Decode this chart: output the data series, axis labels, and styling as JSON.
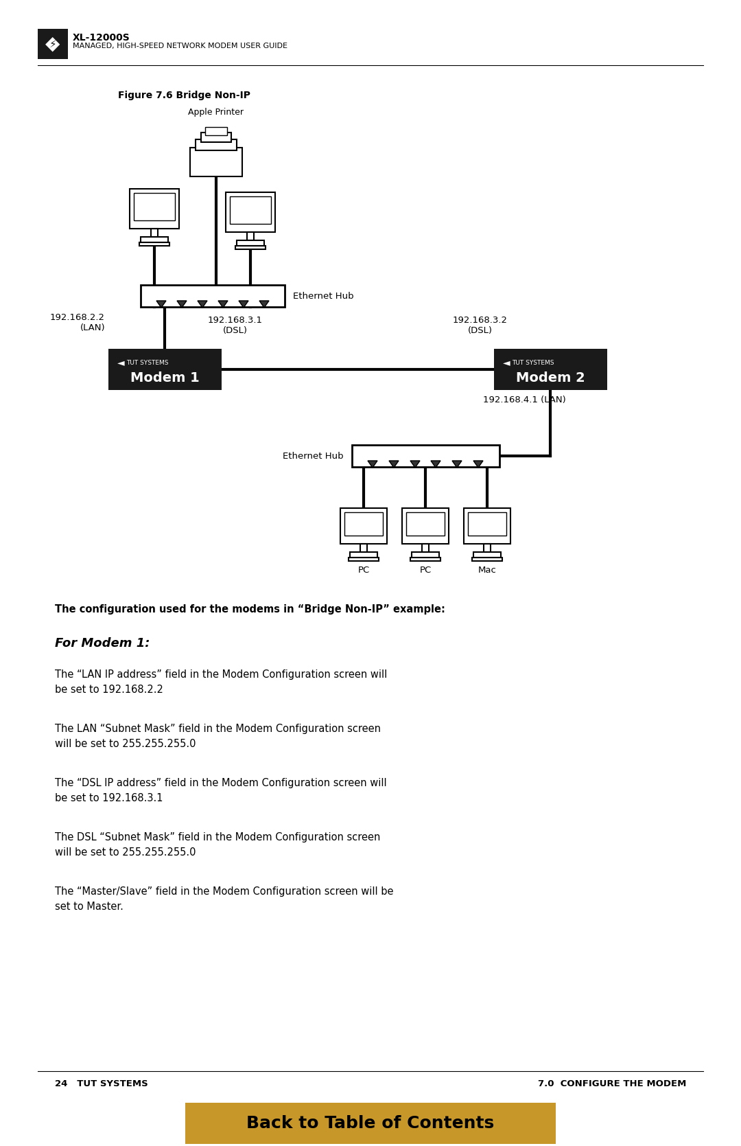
{
  "page_bg": "#ffffff",
  "header_logo_bg": "#1a1a1a",
  "header_title": "XL-12000S",
  "header_subtitle": "MANAGED, HIGH-SPEED NETWORK MODEM USER GUIDE",
  "figure_caption": "Figure 7.6 Bridge Non-IP",
  "modem1_label": "Modem 1",
  "modem2_label": "Modem 2",
  "modem_brand": "TUT SYSTEMS",
  "ip_lan1": "192.168.2.2\n(LAN)",
  "ip_dsl1": "192.168.3.1\n(DSL)",
  "ip_dsl2": "192.168.3.2\n(DSL)",
  "ip_lan2": "192.168.4.1 (LAN)",
  "eth_hub_label": "Ethernet Hub",
  "eth_hub2_label": "Ethernet Hub",
  "apple_printer_label": "Apple Printer",
  "pc_label": "PC",
  "mac_label": "Mac",
  "bold_text": "The configuration used for the modems in “Bridge Non-IP” example:",
  "modem1_header": "For Modem 1:",
  "para1_line1": "The “LAN IP address” field in the Modem Configuration screen will",
  "para1_line2": "be set to 192.168.2.2",
  "para2_line1": "The LAN “Subnet Mask” field in the Modem Configuration screen",
  "para2_line2": "will be set to 255.255.255.0",
  "para3_line1": "The “DSL IP address” field in the Modem Configuration screen will",
  "para3_line2": "be set to 192.168.3.1",
  "para4_line1": "The DSL “Subnet Mask” field in the Modem Configuration screen",
  "para4_line2": "will be set to 255.255.255.0",
  "para5_line1": "The “Master/Slave” field in the Modem Configuration screen will be",
  "para5_line2": "set to Master.",
  "footer_left": "24   TUT SYSTEMS",
  "footer_right": "7.0  CONFIGURE THE MODEM",
  "footer_btn_text": "Back to Table of Contents",
  "footer_btn_bg": "#c8972a",
  "modem_bg": "#1a1a1a",
  "modem_text": "#ffffff"
}
